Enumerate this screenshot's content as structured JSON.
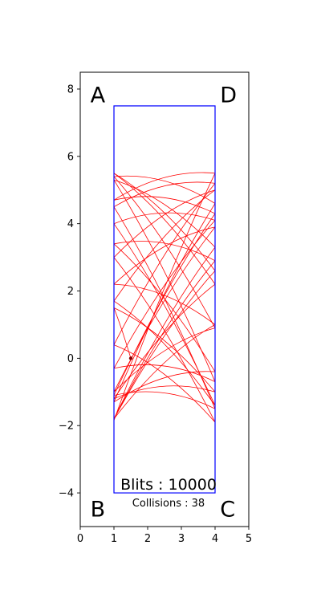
{
  "chart_data": {
    "type": "line",
    "title": "",
    "xlabel": "",
    "ylabel": "",
    "xlim": [
      0,
      5
    ],
    "ylim": [
      -5,
      8.5
    ],
    "xticks": [
      0,
      1,
      2,
      3,
      4,
      5
    ],
    "yticks": [
      -4,
      -2,
      0,
      2,
      4,
      6,
      8
    ],
    "xtick_labels": [
      "0",
      "1",
      "2",
      "3",
      "4",
      "5"
    ],
    "ytick_labels": [
      "−4",
      "−2",
      "0",
      "2",
      "4",
      "6",
      "8"
    ],
    "grid": false,
    "box": {
      "corners": [
        [
          1,
          7.5
        ],
        [
          4,
          7.5
        ],
        [
          4,
          -4
        ],
        [
          1,
          -4
        ]
      ],
      "color": "#0000ff"
    },
    "corner_labels": [
      {
        "text": "A",
        "x": 0.3,
        "y": 7.6
      },
      {
        "text": "D",
        "x": 4.15,
        "y": 7.6
      },
      {
        "text": "B",
        "x": 0.3,
        "y": -4.7
      },
      {
        "text": "C",
        "x": 4.15,
        "y": -4.7
      }
    ],
    "blits_text": "Blits : 10000",
    "collisions_text": "Collisions : 38",
    "trajectory_color": "#ff0000",
    "ball": {
      "x": 1.5,
      "y": 0.0,
      "color": "#8b0000"
    },
    "trajectories": [
      {
        "x0": 1,
        "y0": -1.85,
        "x1": 4,
        "y1": 5.5
      },
      {
        "x0": 4,
        "y0": 5.5,
        "x1": 1,
        "y1": 4.7
      },
      {
        "x0": 1,
        "y0": 4.7,
        "x1": 4,
        "y1": 4.3
      },
      {
        "x0": 4,
        "y0": 4.3,
        "x1": 1,
        "y1": -1.1
      },
      {
        "x0": 1,
        "y0": -1.1,
        "x1": 4,
        "y1": -1.5
      },
      {
        "x0": 4,
        "y0": -1.5,
        "x1": 1,
        "y1": 4.5
      },
      {
        "x0": 1,
        "y0": 4.5,
        "x1": 4,
        "y1": 5.2
      },
      {
        "x0": 4,
        "y0": 5.2,
        "x1": 1,
        "y1": 0.4
      },
      {
        "x0": 1,
        "y0": 0.4,
        "x1": 4,
        "y1": -1.9
      },
      {
        "x0": 4,
        "y0": -1.9,
        "x1": 1,
        "y1": 3.0
      },
      {
        "x0": 1,
        "y0": 3.0,
        "x1": 4,
        "y1": 5.0
      },
      {
        "x0": 4,
        "y0": 5.0,
        "x1": 1,
        "y1": 1.7
      },
      {
        "x0": 1,
        "y0": 1.7,
        "x1": 4,
        "y1": -1.4
      },
      {
        "x0": 4,
        "y0": -1.4,
        "x1": 1,
        "y1": 4.0
      },
      {
        "x0": 1,
        "y0": 4.0,
        "x1": 4,
        "y1": 4.1
      },
      {
        "x0": 4,
        "y0": 4.1,
        "x1": 1,
        "y1": -0.3
      },
      {
        "x0": 1,
        "y0": -0.3,
        "x1": 4,
        "y1": -0.7
      },
      {
        "x0": 4,
        "y0": -0.7,
        "x1": 1,
        "y1": 5.3
      },
      {
        "x0": 1,
        "y0": 5.3,
        "x1": 4,
        "y1": 3.3
      },
      {
        "x0": 4,
        "y0": 3.3,
        "x1": 1,
        "y1": -1.8
      },
      {
        "x0": 1,
        "y0": -1.8,
        "x1": 4,
        "y1": 2.9
      },
      {
        "x0": 4,
        "y0": 2.9,
        "x1": 1,
        "y1": 3.4
      },
      {
        "x0": 1,
        "y0": 3.4,
        "x1": 4,
        "y1": -0.4
      },
      {
        "x0": 4,
        "y0": -0.4,
        "x1": 1,
        "y1": -1.3
      },
      {
        "x0": 1,
        "y0": -1.3,
        "x1": 4,
        "y1": 4.6
      },
      {
        "x0": 4,
        "y0": 4.6,
        "x1": 1,
        "y1": 5.4
      },
      {
        "x0": 1,
        "y0": 5.4,
        "x1": 4,
        "y1": 0.9
      },
      {
        "x0": 4,
        "y0": 0.9,
        "x1": 1,
        "y1": -1.0
      },
      {
        "x0": 1,
        "y0": -1.0,
        "x1": 4,
        "y1": 3.9
      },
      {
        "x0": 4,
        "y0": 3.9,
        "x1": 1,
        "y1": 2.2
      },
      {
        "x0": 1,
        "y0": 2.2,
        "x1": 4,
        "y1": 1.0
      },
      {
        "x0": 4,
        "y0": 1.0,
        "x1": 1,
        "y1": -1.8
      },
      {
        "x0": 1,
        "y0": -1.8,
        "x1": 4,
        "y1": 2.6
      },
      {
        "x0": 4,
        "y0": 2.6,
        "x1": 1,
        "y1": 5.5
      },
      {
        "x0": 1,
        "y0": 5.5,
        "x1": 4,
        "y1": 2.2
      },
      {
        "x0": 4,
        "y0": 2.2,
        "x1": 1,
        "y1": -1.2
      },
      {
        "x0": 1,
        "y0": -1.2,
        "x1": 4,
        "y1": -1.0
      },
      {
        "x0": 4,
        "y0": -1.0,
        "x1": 1,
        "y1": 1.5
      },
      {
        "x0": 1,
        "y0": 1.5,
        "x1": 1.5,
        "y1": 0.0
      }
    ]
  }
}
